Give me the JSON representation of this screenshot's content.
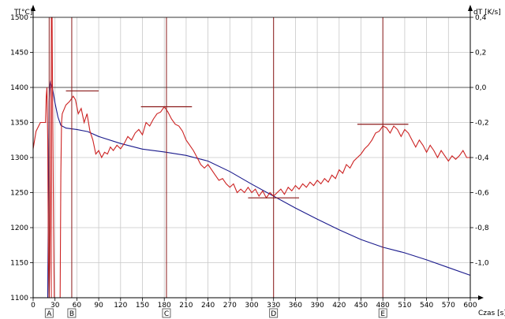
{
  "chart_data": {
    "type": "line",
    "x_axis": {
      "label": "Czas [s]",
      "range": [
        0,
        600
      ],
      "ticks": [
        0,
        30,
        60,
        90,
        120,
        150,
        180,
        210,
        240,
        270,
        300,
        330,
        360,
        390,
        420,
        450,
        480,
        510,
        540,
        570,
        600
      ],
      "tick_labels": [
        "0",
        "30",
        "60",
        "90",
        "120",
        "150",
        "180",
        "210",
        "240",
        "270",
        "300",
        "330",
        "360",
        "390",
        "420",
        "450",
        "480",
        "510",
        "540",
        "570",
        "600"
      ]
    },
    "y_left": {
      "label": "T[°C]",
      "range": [
        1100,
        1500
      ],
      "ticks": [
        1100,
        1150,
        1200,
        1250,
        1300,
        1350,
        1400,
        1450,
        1500
      ],
      "tick_labels": [
        "1100",
        "1150",
        "1200",
        "1250",
        "1300",
        "1350",
        "1400",
        "1450",
        "1500"
      ]
    },
    "y_right": {
      "label": "dT [K/s]",
      "range": [
        -1.2,
        0.4
      ],
      "ticks": [
        -1.0,
        -0.8,
        -0.6,
        -0.4,
        -0.2,
        0.0,
        0.2,
        0.4
      ],
      "tick_labels": [
        "-1,0",
        "-0,8",
        "-0,6",
        "-0,4",
        "-0,2",
        "0,0",
        "0,2",
        "0,4"
      ]
    },
    "grid": true,
    "series": [
      {
        "axis": "left",
        "color": "#1a1a8c",
        "points": [
          [
            20,
            1100
          ],
          [
            21,
            1250
          ],
          [
            22,
            1380
          ],
          [
            23,
            1402
          ],
          [
            24,
            1408
          ],
          [
            26,
            1402
          ],
          [
            30,
            1378
          ],
          [
            34,
            1358
          ],
          [
            38,
            1346
          ],
          [
            45,
            1342
          ],
          [
            60,
            1340
          ],
          [
            75,
            1337
          ],
          [
            90,
            1330
          ],
          [
            120,
            1320
          ],
          [
            150,
            1312
          ],
          [
            180,
            1308
          ],
          [
            210,
            1303
          ],
          [
            240,
            1295
          ],
          [
            270,
            1280
          ],
          [
            300,
            1262
          ],
          [
            330,
            1245
          ],
          [
            360,
            1228
          ],
          [
            390,
            1212
          ],
          [
            420,
            1197
          ],
          [
            450,
            1183
          ],
          [
            480,
            1172
          ],
          [
            510,
            1164
          ],
          [
            540,
            1154
          ],
          [
            570,
            1143
          ],
          [
            600,
            1132
          ]
        ]
      },
      {
        "axis": "right",
        "color": "#cc2222",
        "points": [
          [
            0,
            -0.35
          ],
          [
            4,
            -0.25
          ],
          [
            10,
            -0.2
          ],
          [
            14,
            -0.2
          ],
          [
            17,
            -0.2
          ],
          [
            18,
            -0.05
          ],
          [
            19,
            0.0
          ],
          [
            20,
            -0.3
          ],
          [
            21,
            -1.0
          ],
          [
            22,
            -1.2
          ],
          [
            23,
            -1.0
          ],
          [
            24,
            -0.5
          ],
          [
            25,
            0.4
          ],
          [
            26,
            0.4
          ],
          [
            27,
            -0.2
          ],
          [
            28,
            -0.8
          ],
          [
            29,
            -1.2
          ],
          [
            32,
            -1.2
          ],
          [
            34,
            -1.2
          ],
          [
            37,
            -1.2
          ],
          [
            38,
            -0.5
          ],
          [
            39,
            -0.2
          ],
          [
            40,
            -0.15
          ],
          [
            45,
            -0.1
          ],
          [
            50,
            -0.08
          ],
          [
            55,
            -0.05
          ],
          [
            58,
            -0.07
          ],
          [
            62,
            -0.15
          ],
          [
            66,
            -0.12
          ],
          [
            70,
            -0.2
          ],
          [
            74,
            -0.15
          ],
          [
            78,
            -0.25
          ],
          [
            82,
            -0.3
          ],
          [
            86,
            -0.38
          ],
          [
            90,
            -0.36
          ],
          [
            94,
            -0.4
          ],
          [
            98,
            -0.37
          ],
          [
            102,
            -0.38
          ],
          [
            106,
            -0.34
          ],
          [
            110,
            -0.36
          ],
          [
            115,
            -0.33
          ],
          [
            120,
            -0.35
          ],
          [
            125,
            -0.32
          ],
          [
            130,
            -0.28
          ],
          [
            135,
            -0.3
          ],
          [
            140,
            -0.26
          ],
          [
            145,
            -0.24
          ],
          [
            150,
            -0.27
          ],
          [
            155,
            -0.2
          ],
          [
            160,
            -0.22
          ],
          [
            165,
            -0.18
          ],
          [
            170,
            -0.15
          ],
          [
            175,
            -0.14
          ],
          [
            180,
            -0.11
          ],
          [
            185,
            -0.14
          ],
          [
            190,
            -0.18
          ],
          [
            195,
            -0.21
          ],
          [
            200,
            -0.22
          ],
          [
            205,
            -0.25
          ],
          [
            210,
            -0.3
          ],
          [
            215,
            -0.33
          ],
          [
            220,
            -0.36
          ],
          [
            225,
            -0.4
          ],
          [
            230,
            -0.44
          ],
          [
            235,
            -0.46
          ],
          [
            240,
            -0.44
          ],
          [
            245,
            -0.47
          ],
          [
            250,
            -0.5
          ],
          [
            255,
            -0.53
          ],
          [
            260,
            -0.52
          ],
          [
            265,
            -0.55
          ],
          [
            270,
            -0.57
          ],
          [
            275,
            -0.55
          ],
          [
            280,
            -0.6
          ],
          [
            285,
            -0.58
          ],
          [
            290,
            -0.6
          ],
          [
            295,
            -0.57
          ],
          [
            300,
            -0.6
          ],
          [
            305,
            -0.58
          ],
          [
            310,
            -0.62
          ],
          [
            315,
            -0.59
          ],
          [
            320,
            -0.63
          ],
          [
            325,
            -0.6
          ],
          [
            330,
            -0.62
          ],
          [
            335,
            -0.6
          ],
          [
            340,
            -0.58
          ],
          [
            345,
            -0.61
          ],
          [
            350,
            -0.57
          ],
          [
            355,
            -0.59
          ],
          [
            360,
            -0.56
          ],
          [
            365,
            -0.58
          ],
          [
            370,
            -0.55
          ],
          [
            375,
            -0.57
          ],
          [
            380,
            -0.54
          ],
          [
            385,
            -0.56
          ],
          [
            390,
            -0.53
          ],
          [
            395,
            -0.55
          ],
          [
            400,
            -0.52
          ],
          [
            405,
            -0.54
          ],
          [
            410,
            -0.5
          ],
          [
            415,
            -0.52
          ],
          [
            420,
            -0.47
          ],
          [
            425,
            -0.49
          ],
          [
            430,
            -0.44
          ],
          [
            435,
            -0.46
          ],
          [
            440,
            -0.42
          ],
          [
            445,
            -0.4
          ],
          [
            450,
            -0.38
          ],
          [
            455,
            -0.35
          ],
          [
            460,
            -0.33
          ],
          [
            465,
            -0.3
          ],
          [
            470,
            -0.26
          ],
          [
            475,
            -0.25
          ],
          [
            480,
            -0.22
          ],
          [
            485,
            -0.23
          ],
          [
            490,
            -0.26
          ],
          [
            495,
            -0.22
          ],
          [
            500,
            -0.24
          ],
          [
            505,
            -0.28
          ],
          [
            510,
            -0.24
          ],
          [
            515,
            -0.26
          ],
          [
            520,
            -0.3
          ],
          [
            525,
            -0.34
          ],
          [
            530,
            -0.3
          ],
          [
            535,
            -0.33
          ],
          [
            540,
            -0.37
          ],
          [
            545,
            -0.33
          ],
          [
            550,
            -0.36
          ],
          [
            555,
            -0.4
          ],
          [
            560,
            -0.36
          ],
          [
            565,
            -0.39
          ],
          [
            570,
            -0.42
          ],
          [
            575,
            -0.39
          ],
          [
            580,
            -0.41
          ],
          [
            585,
            -0.39
          ],
          [
            590,
            -0.36
          ],
          [
            595,
            -0.4
          ],
          [
            600,
            -0.4
          ]
        ]
      }
    ],
    "markers": [
      {
        "label": "A",
        "x": 22
      },
      {
        "label": "B",
        "x": 53
      },
      {
        "label": "C",
        "x": 183
      },
      {
        "label": "D",
        "x": 330
      },
      {
        "label": "E",
        "x": 480
      }
    ],
    "marker_lines_extra_x": [
      25
    ],
    "horizontal_markers": [
      {
        "x_from": 45,
        "x_to": 90,
        "y_right": -0.02
      },
      {
        "x_from": 148,
        "x_to": 218,
        "y_right": -0.11
      },
      {
        "x_from": 295,
        "x_to": 365,
        "y_right": -0.63
      },
      {
        "x_from": 445,
        "x_to": 515,
        "y_right": -0.21
      }
    ]
  }
}
